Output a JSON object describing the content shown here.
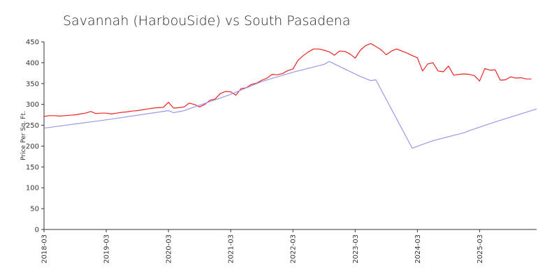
{
  "chart_data": {
    "type": "line",
    "title": "Savannah (HarbouSide) vs South Pasadena",
    "xlabel": "",
    "ylabel": "Price Per Sq. Ft.",
    "ylim": [
      0,
      450
    ],
    "yticks": [
      0,
      50,
      100,
      150,
      200,
      250,
      300,
      350,
      400,
      450
    ],
    "xlim": [
      "2018-03",
      "2026-02"
    ],
    "xticks": [
      "2018-03",
      "2019-03",
      "2020-03",
      "2021-03",
      "2022-03",
      "2023-03",
      "2024-03",
      "2025-03"
    ],
    "grid": false,
    "legend": "none",
    "series": [
      {
        "color": "#ee2222",
        "x": [
          "2018-03",
          "2018-04",
          "2018-05",
          "2018-06",
          "2018-07",
          "2018-08",
          "2018-09",
          "2018-10",
          "2018-11",
          "2018-12",
          "2019-01",
          "2019-02",
          "2019-03",
          "2019-04",
          "2019-05",
          "2019-06",
          "2019-07",
          "2019-08",
          "2019-09",
          "2019-10",
          "2019-11",
          "2019-12",
          "2020-01",
          "2020-02",
          "2020-03",
          "2020-04",
          "2020-05",
          "2020-06",
          "2020-07",
          "2020-08",
          "2020-09",
          "2020-10",
          "2020-11",
          "2020-12",
          "2021-01",
          "2021-02",
          "2021-03",
          "2021-04",
          "2021-05",
          "2021-06",
          "2021-07",
          "2021-08",
          "2021-09",
          "2021-10",
          "2021-11",
          "2021-12",
          "2022-01",
          "2022-02",
          "2022-03",
          "2022-04",
          "2022-05",
          "2022-06",
          "2022-07",
          "2022-08",
          "2022-09",
          "2022-10",
          "2022-11",
          "2022-12",
          "2023-01",
          "2023-02",
          "2023-03",
          "2023-04",
          "2023-05",
          "2023-06",
          "2023-07",
          "2023-08",
          "2023-09",
          "2023-10",
          "2023-11",
          "2023-12",
          "2024-01",
          "2024-02",
          "2024-03",
          "2024-04",
          "2024-05",
          "2024-06",
          "2024-07",
          "2024-08",
          "2024-09",
          "2024-10",
          "2024-11",
          "2024-12",
          "2025-01",
          "2025-02",
          "2025-03",
          "2025-04",
          "2025-05",
          "2025-06",
          "2025-07",
          "2025-08",
          "2025-09",
          "2025-10",
          "2025-11",
          "2025-12",
          "2026-01"
        ],
        "values": [
          271,
          273,
          273,
          272,
          273,
          274,
          275,
          277,
          279,
          283,
          278,
          279,
          279,
          277,
          279,
          281,
          282,
          284,
          285,
          287,
          289,
          291,
          292,
          293,
          305,
          291,
          292,
          294,
          303,
          300,
          294,
          300,
          310,
          313,
          326,
          331,
          330,
          322,
          338,
          340,
          348,
          351,
          358,
          363,
          372,
          371,
          374,
          381,
          385,
          406,
          417,
          426,
          433,
          433,
          430,
          426,
          418,
          428,
          427,
          421,
          411,
          430,
          441,
          446,
          439,
          431,
          419,
          428,
          433,
          428,
          423,
          417,
          412,
          380,
          397,
          400,
          380,
          378,
          392,
          370,
          372,
          373,
          372,
          369,
          356,
          386,
          382,
          383,
          358,
          359,
          366,
          363,
          364,
          361,
          361
        ]
      },
      {
        "color": "#9a96ee",
        "x": [
          "2018-03",
          "2018-12",
          "2019-03",
          "2020-03",
          "2020-04",
          "2020-06",
          "2021-03",
          "2021-09",
          "2022-03",
          "2022-09",
          "2022-10",
          "2023-01",
          "2023-04",
          "2023-06",
          "2023-07",
          "2024-02",
          "2024-06",
          "2024-12",
          "2025-01",
          "2025-06",
          "2026-02"
        ],
        "values": [
          243,
          258,
          263,
          285,
          280,
          285,
          324,
          355,
          377,
          396,
          403,
          385,
          367,
          357,
          359,
          195,
          213,
          232,
          237,
          258,
          289
        ]
      }
    ]
  }
}
